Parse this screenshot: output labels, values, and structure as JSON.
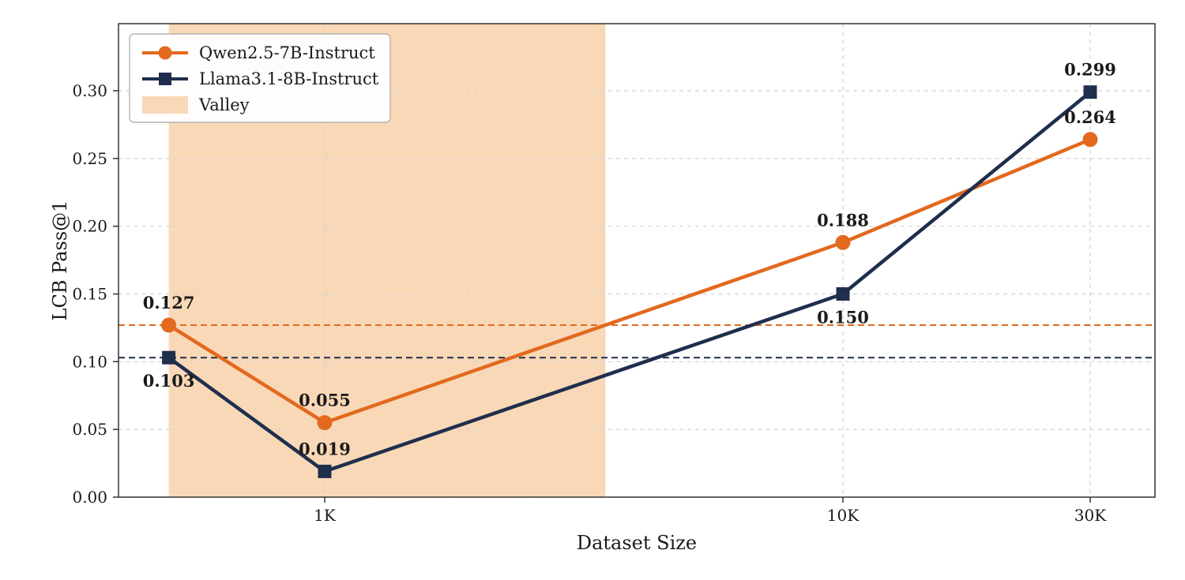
{
  "chart_data": {
    "type": "line",
    "title": "",
    "xlabel": "Dataset Size",
    "ylabel": "LCB Pass@1",
    "x_scale": "log",
    "xlim": [
      400,
      40000
    ],
    "ylim": [
      0,
      0.3495
    ],
    "grid": true,
    "x": [
      500,
      1000,
      10000,
      30000
    ],
    "x_ticks": [
      {
        "value": 1000,
        "label": "1K"
      },
      {
        "value": 10000,
        "label": "10K"
      },
      {
        "value": 30000,
        "label": "30K"
      }
    ],
    "y_ticks": [
      0.0,
      0.05,
      0.1,
      0.15,
      0.2,
      0.25,
      0.3
    ],
    "series": [
      {
        "name": "Qwen2.5-7B-Instruct",
        "color": "#E2691D",
        "marker": "circle",
        "values": [
          0.127,
          0.055,
          0.188,
          0.264
        ],
        "baseline": 0.127,
        "label_positions": [
          "above",
          "above",
          "above",
          "above"
        ]
      },
      {
        "name": "Llama3.1-8B-Instruct",
        "color": "#1F2E4D",
        "marker": "square",
        "values": [
          0.103,
          0.019,
          0.15,
          0.299
        ],
        "baseline": 0.103,
        "label_positions": [
          "below",
          "above",
          "below",
          "above"
        ]
      }
    ],
    "valley": {
      "label": "Valley",
      "x0": 500,
      "x1": 3480,
      "color": "#F9D8B7"
    },
    "legend": {
      "position": "upper-left",
      "entries": [
        "Qwen2.5-7B-Instruct",
        "Llama3.1-8B-Instruct",
        "Valley"
      ]
    }
  }
}
